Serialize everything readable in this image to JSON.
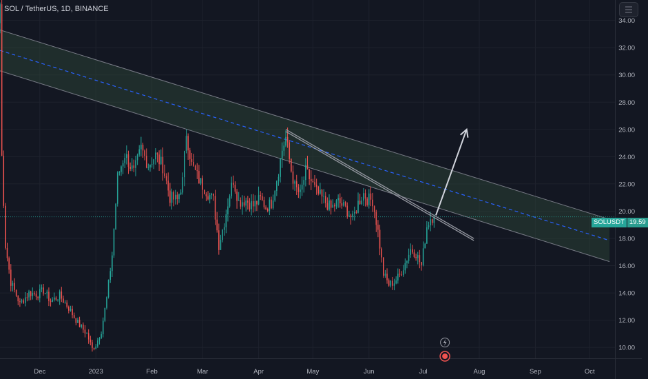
{
  "header": {
    "symbol_title": "SOL / TetherUS, 1D, BINANCE"
  },
  "price_tag": {
    "symbol": "SOLUSDT",
    "value": "19.59"
  },
  "colors": {
    "background": "#131722",
    "up": "#26a69a",
    "down": "#ef5350",
    "channel_fill": "#2e4a3a",
    "channel_line": "#787b86",
    "midline": "#2962ff",
    "arrow": "#d1d4dc",
    "trendline": "#9598a1"
  },
  "icons": [
    "menu-icon",
    "lightning-icon",
    "earnings-flag-icon"
  ],
  "chart_data": {
    "type": "candlestick",
    "title": "SOL / TetherUS, 1D, BINANCE",
    "y_ticks": [
      "34.00",
      "32.00",
      "30.00",
      "28.00",
      "26.00",
      "24.00",
      "22.00",
      "20.00",
      "18.00",
      "16.00",
      "14.00",
      "12.00",
      "10.00"
    ],
    "x_ticks": [
      "Dec",
      "2023",
      "Feb",
      "Mar",
      "Apr",
      "May",
      "Jun",
      "Jul",
      "Aug",
      "Sep",
      "Oct"
    ],
    "ylim": [
      9.2,
      35.5
    ],
    "x_range": [
      "2022-11-09",
      "2023-10-15"
    ],
    "last_price": 19.59,
    "close_path": [
      [
        "2022-11-09",
        35.2
      ],
      [
        "2022-11-10",
        24.0
      ],
      [
        "2022-11-12",
        17.5
      ],
      [
        "2022-11-15",
        14.8
      ],
      [
        "2022-11-20",
        13.2
      ],
      [
        "2022-11-25",
        14.0
      ],
      [
        "2022-11-30",
        13.9
      ],
      [
        "2022-12-03",
        14.2
      ],
      [
        "2022-12-07",
        13.4
      ],
      [
        "2022-12-12",
        13.8
      ],
      [
        "2022-12-17",
        12.9
      ],
      [
        "2022-12-22",
        11.8
      ],
      [
        "2022-12-27",
        11.0
      ],
      [
        "2022-12-30",
        9.9
      ],
      [
        "2023-01-01",
        10.2
      ],
      [
        "2023-01-04",
        11.2
      ],
      [
        "2023-01-07",
        13.6
      ],
      [
        "2023-01-10",
        16.8
      ],
      [
        "2023-01-13",
        22.5
      ],
      [
        "2023-01-17",
        24.2
      ],
      [
        "2023-01-22",
        22.8
      ],
      [
        "2023-01-26",
        24.6
      ],
      [
        "2023-01-30",
        23.4
      ],
      [
        "2023-02-03",
        24.1
      ],
      [
        "2023-02-07",
        23.3
      ],
      [
        "2023-02-11",
        21.0
      ],
      [
        "2023-02-15",
        20.8
      ],
      [
        "2023-02-18",
        22.2
      ],
      [
        "2023-02-20",
        25.8
      ],
      [
        "2023-02-23",
        23.4
      ],
      [
        "2023-02-27",
        22.3
      ],
      [
        "2023-03-03",
        21.5
      ],
      [
        "2023-03-07",
        20.8
      ],
      [
        "2023-03-10",
        17.5
      ],
      [
        "2023-03-13",
        19.2
      ],
      [
        "2023-03-16",
        21.3
      ],
      [
        "2023-03-18",
        22.3
      ],
      [
        "2023-03-21",
        20.7
      ],
      [
        "2023-03-25",
        20.8
      ],
      [
        "2023-03-29",
        20.4
      ],
      [
        "2023-04-02",
        20.9
      ],
      [
        "2023-04-05",
        20.3
      ],
      [
        "2023-04-08",
        20.6
      ],
      [
        "2023-04-12",
        23.0
      ],
      [
        "2023-04-14",
        24.5
      ],
      [
        "2023-04-16",
        25.4
      ],
      [
        "2023-04-19",
        23.0
      ],
      [
        "2023-04-21",
        21.8
      ],
      [
        "2023-04-24",
        21.2
      ],
      [
        "2023-04-27",
        22.9
      ],
      [
        "2023-04-30",
        22.2
      ],
      [
        "2023-05-03",
        21.4
      ],
      [
        "2023-05-07",
        20.8
      ],
      [
        "2023-05-11",
        20.2
      ],
      [
        "2023-05-15",
        20.7
      ],
      [
        "2023-05-19",
        20.2
      ],
      [
        "2023-05-23",
        19.4
      ],
      [
        "2023-05-26",
        20.6
      ],
      [
        "2023-05-29",
        21.3
      ],
      [
        "2023-05-31",
        20.9
      ],
      [
        "2023-06-03",
        20.8
      ],
      [
        "2023-06-06",
        18.5
      ],
      [
        "2023-06-09",
        15.4
      ],
      [
        "2023-06-12",
        14.6
      ],
      [
        "2023-06-15",
        14.8
      ],
      [
        "2023-06-18",
        15.3
      ],
      [
        "2023-06-21",
        16.2
      ],
      [
        "2023-06-24",
        17.2
      ],
      [
        "2023-06-27",
        16.9
      ],
      [
        "2023-06-30",
        16.0
      ],
      [
        "2023-07-03",
        18.9
      ],
      [
        "2023-07-05",
        19.5
      ],
      [
        "2023-07-07",
        19.59
      ]
    ],
    "drawings": {
      "channel": {
        "upper": [
          [
            "2022-11-09",
            33.3
          ],
          [
            "2023-10-12",
            19.4
          ]
        ],
        "lower": [
          [
            "2022-11-09",
            30.3
          ],
          [
            "2023-10-12",
            16.3
          ]
        ],
        "midline": [
          [
            "2022-11-09",
            31.8
          ],
          [
            "2023-10-12",
            17.85
          ]
        ]
      },
      "trendline": [
        [
          "2023-04-16",
          26.0
        ],
        [
          "2023-07-29",
          18.0
        ]
      ],
      "arrow": [
        [
          "2023-07-08",
          19.7
        ],
        [
          "2023-07-25",
          26.0
        ]
      ]
    }
  }
}
